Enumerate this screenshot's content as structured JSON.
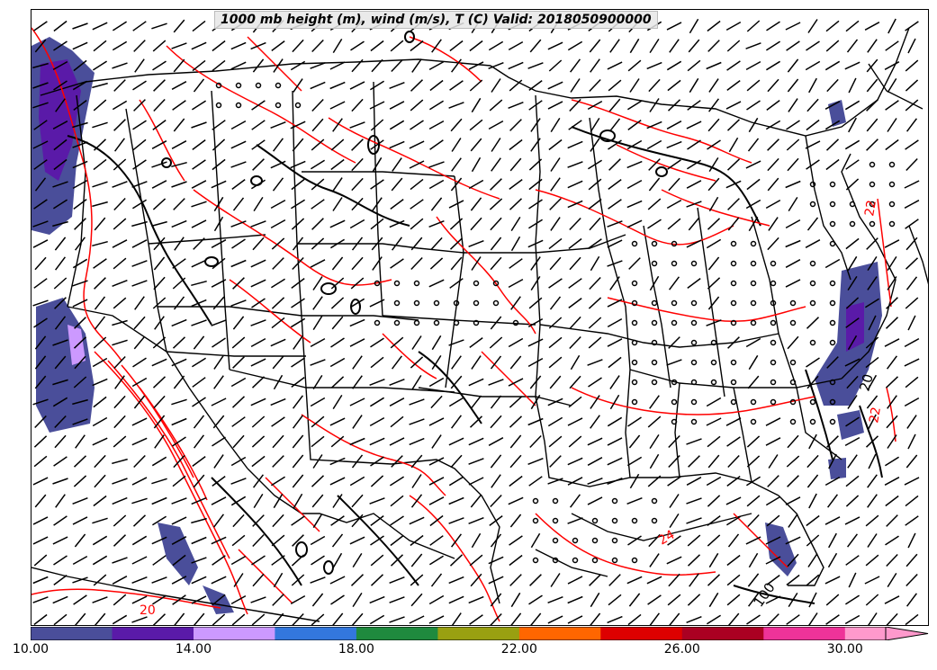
{
  "title": "1000 mb height (m), wind (m/s), T (C) Valid: 2018050900000",
  "colorbar": {
    "colors": [
      "#4a4e9a",
      "#5a1aa8",
      "#cc99ff",
      "#3377dd",
      "#1f8a3e",
      "#99a011",
      "#ff6600",
      "#dd0000",
      "#aa0022",
      "#ee3399",
      "#ff99cc"
    ],
    "ticks": [
      "10.00",
      "14.00",
      "18.00",
      "22.00",
      "26.00",
      "30.00"
    ],
    "range": [
      10,
      31
    ],
    "extend": "max"
  },
  "contour_labels": [
    {
      "text": "22",
      "color": "#ff0000"
    },
    {
      "text": "20",
      "color": "#000000"
    },
    {
      "text": "22",
      "color": "#ff0000"
    },
    {
      "text": "100",
      "color": "#000000"
    },
    {
      "text": "24",
      "color": "#ff0000"
    },
    {
      "text": "20",
      "color": "#ff0000"
    }
  ],
  "colors": {
    "temperature_contour": "#ff0000",
    "height_contour": "#000000",
    "boundaries": "#000000"
  }
}
